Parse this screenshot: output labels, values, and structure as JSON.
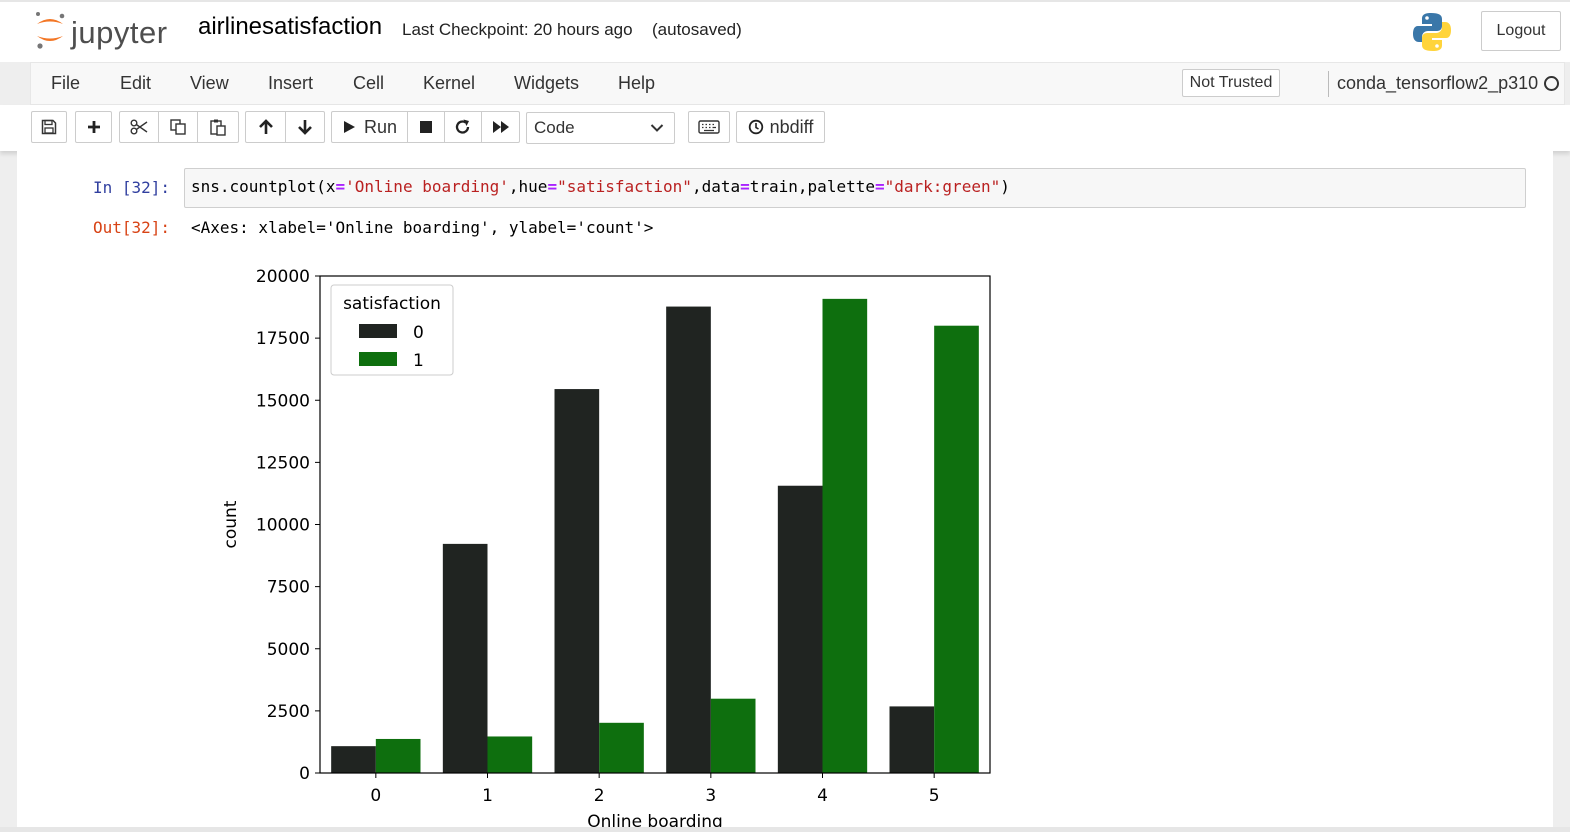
{
  "header": {
    "logo_text": "jupyter",
    "notebook_name": "airlinesatisfaction",
    "checkpoint": "Last Checkpoint: 20 hours ago",
    "autosave": "(autosaved)",
    "logout_label": "Logout"
  },
  "menubar": {
    "items": [
      "File",
      "Edit",
      "View",
      "Insert",
      "Cell",
      "Kernel",
      "Widgets",
      "Help"
    ],
    "trust_label": "Not Trusted",
    "kernel_name": "conda_tensorflow2_p310"
  },
  "toolbar": {
    "icons": [
      "save-icon",
      "plus-icon",
      "cut-icon",
      "copy-icon",
      "paste-icon",
      "arrow-up-icon",
      "arrow-down-icon",
      "run-icon",
      "stop-icon",
      "restart-icon",
      "fast-forward-icon",
      "keyboard-icon",
      "clock-icon"
    ],
    "run_label": "Run",
    "cell_type": "Code",
    "nbdiff_label": "nbdiff"
  },
  "cell": {
    "in_prompt": "In [32]:",
    "code_parts": {
      "p1": "sns.countplot(x",
      "op1": "=",
      "s1": "'Online boarding'",
      "p2": ",hue",
      "op2": "=",
      "s2": "\"satisfaction\"",
      "p3": ",data",
      "op3": "=",
      "p4": "train,palette",
      "op4": "=",
      "s3": "\"dark:green\"",
      "p5": ")"
    },
    "out_prompt": "Out[32]:",
    "out_text": "<Axes: xlabel='Online boarding', ylabel='count'>"
  },
  "chart_data": {
    "type": "bar",
    "categories": [
      "0",
      "1",
      "2",
      "3",
      "4",
      "5"
    ],
    "series": [
      {
        "name": "0",
        "values": [
          1080,
          9220,
          15450,
          18770,
          11560,
          2680
        ],
        "color": "#202421"
      },
      {
        "name": "1",
        "values": [
          1370,
          1470,
          2020,
          2990,
          19080,
          18000
        ],
        "color": "#0e6f0e"
      }
    ],
    "xlabel": "Online boarding",
    "ylabel": "count",
    "ylim": [
      0,
      20000
    ],
    "yticks": [
      "0",
      "2500",
      "5000",
      "7500",
      "10000",
      "12500",
      "15000",
      "17500",
      "20000"
    ],
    "legend_title": "satisfaction",
    "legend_position": "top-left",
    "grid": false
  }
}
